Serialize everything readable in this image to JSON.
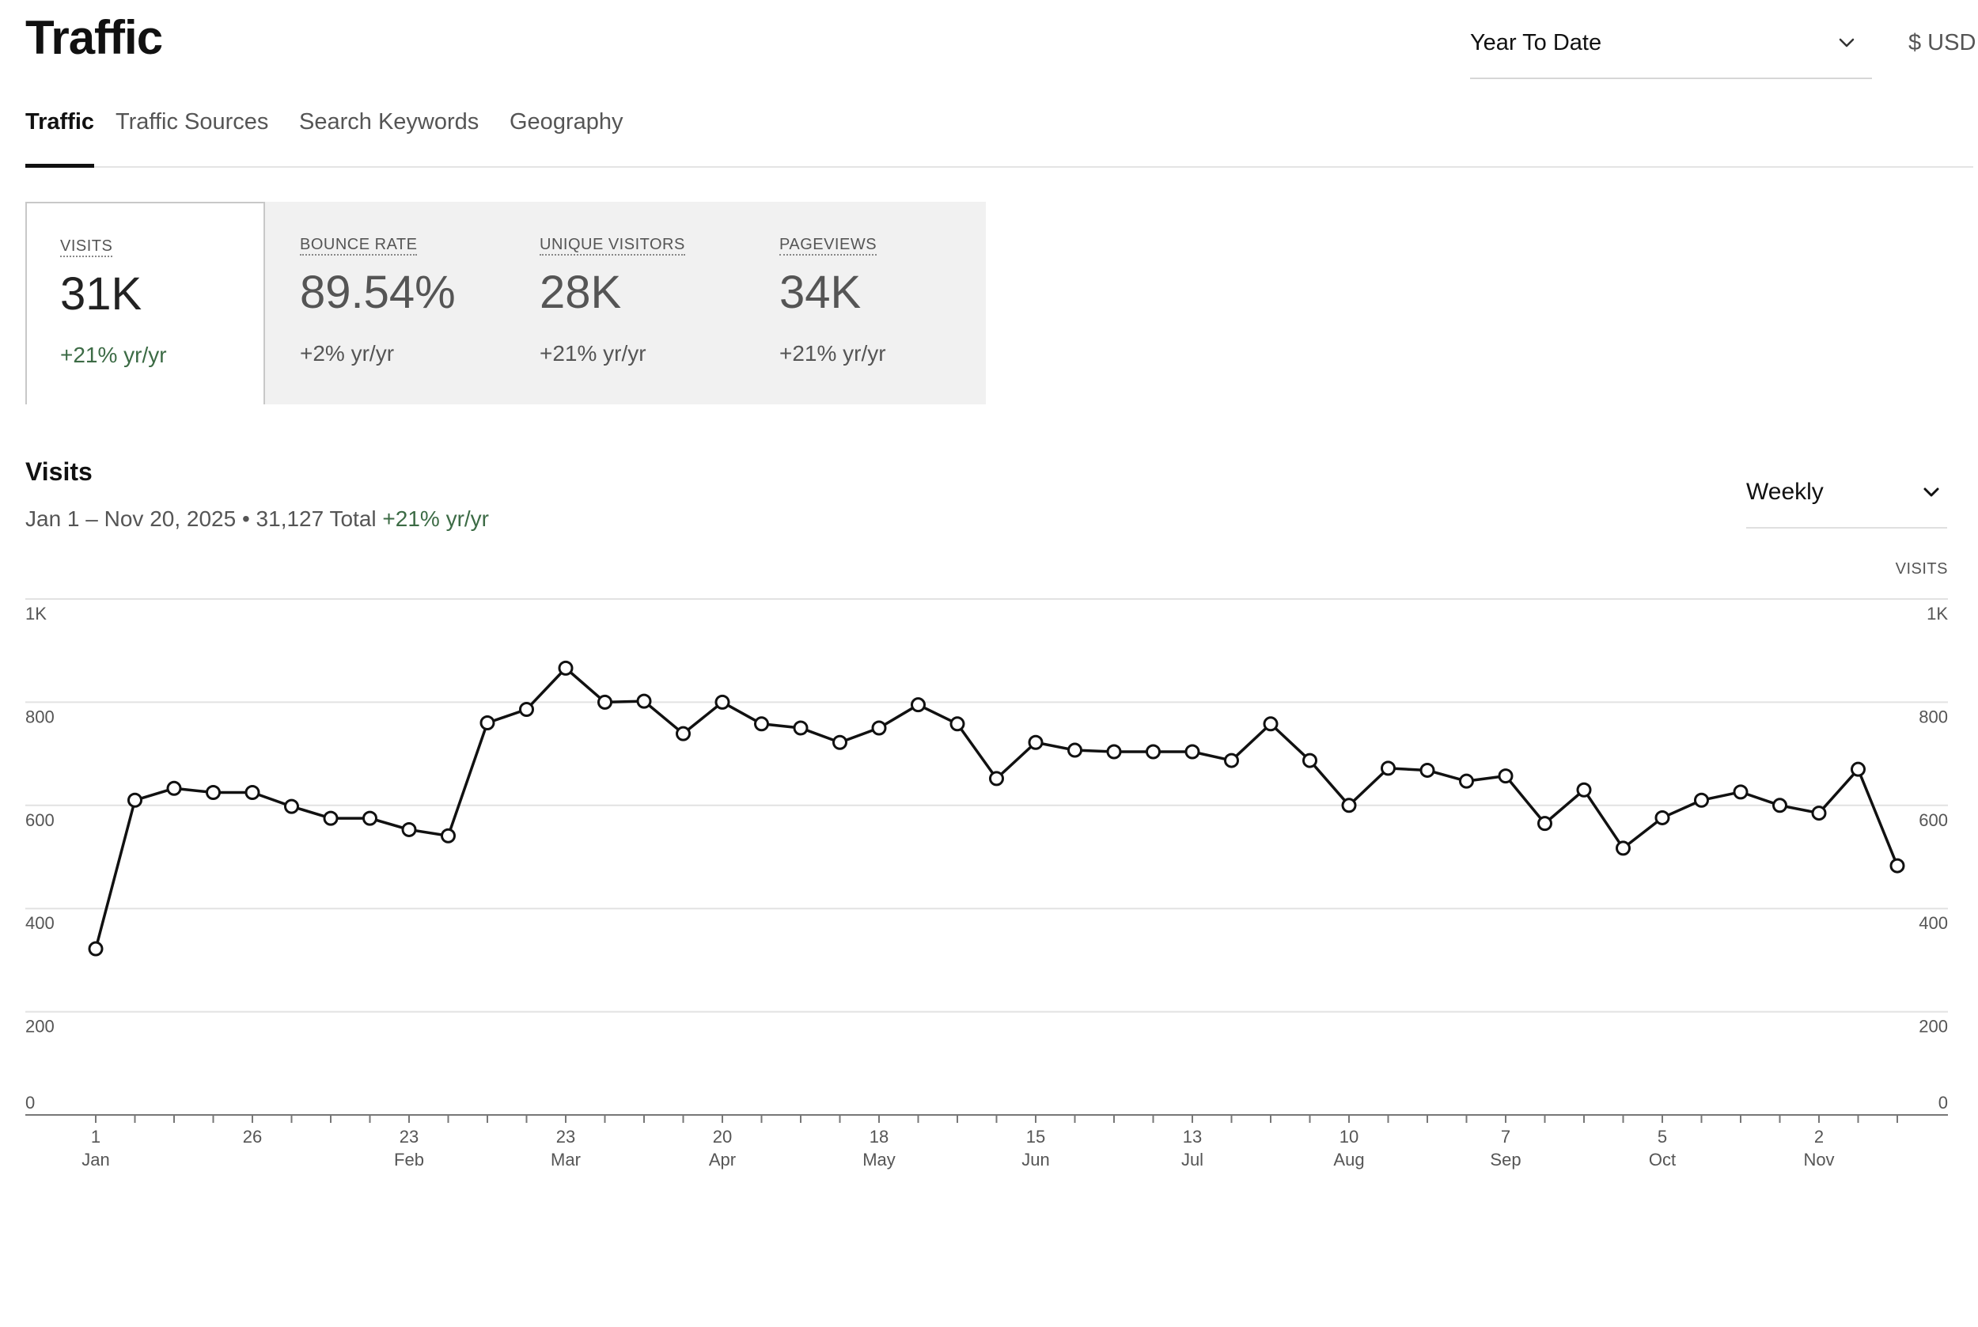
{
  "header": {
    "title": "Traffic",
    "date_range": "Year To Date",
    "currency": "$ USD"
  },
  "tabs": [
    {
      "label": "Traffic",
      "active": true
    },
    {
      "label": "Traffic Sources",
      "active": false
    },
    {
      "label": "Search Keywords",
      "active": false
    },
    {
      "label": "Geography",
      "active": false
    }
  ],
  "metrics": [
    {
      "label": "VISITS",
      "value": "31K",
      "change": "+21% yr/yr",
      "active": true
    },
    {
      "label": "BOUNCE RATE",
      "value": "89.54%",
      "change": "+2% yr/yr",
      "active": false
    },
    {
      "label": "UNIQUE VISITORS",
      "value": "28K",
      "change": "+21% yr/yr",
      "active": false
    },
    {
      "label": "PAGEVIEWS",
      "value": "34K",
      "change": "+21% yr/yr",
      "active": false
    }
  ],
  "visits_section": {
    "title": "Visits",
    "range_text": "Jan 1 – Nov 20, 2025 • 31,127 Total",
    "change": "+21% yr/yr",
    "interval": "Weekly",
    "right_axis_title": "VISITS"
  },
  "colors": {
    "positive": "#3c6b45",
    "line": "#111111",
    "grid": "#e2e2e2",
    "metric_bg": "#f1f1f1"
  },
  "icons": {
    "range_dropdown": "chevron-down-icon",
    "interval_dropdown": "chevron-down-icon"
  },
  "chart_data": {
    "type": "line",
    "title": "Visits",
    "ylabel": "VISITS",
    "ylim": [
      0,
      1000
    ],
    "y_ticks": [
      "0",
      "200",
      "400",
      "600",
      "800",
      "1K"
    ],
    "grid": true,
    "x_tick_labels": [
      {
        "day": "1",
        "month": "Jan",
        "index": 0
      },
      {
        "day": "26",
        "month": "",
        "index": 4
      },
      {
        "day": "23",
        "month": "Feb",
        "index": 8
      },
      {
        "day": "23",
        "month": "Mar",
        "index": 12
      },
      {
        "day": "20",
        "month": "Apr",
        "index": 16
      },
      {
        "day": "18",
        "month": "May",
        "index": 20
      },
      {
        "day": "15",
        "month": "Jun",
        "index": 24
      },
      {
        "day": "13",
        "month": "Jul",
        "index": 28
      },
      {
        "day": "10",
        "month": "Aug",
        "index": 32
      },
      {
        "day": "7",
        "month": "Sep",
        "index": 36
      },
      {
        "day": "5",
        "month": "Oct",
        "index": 40
      },
      {
        "day": "2",
        "month": "Nov",
        "index": 44
      }
    ],
    "series": [
      {
        "values": [
          322,
          610,
          633,
          625,
          625,
          598,
          575,
          575,
          553,
          541,
          760,
          786,
          866,
          800,
          802,
          739,
          800,
          758,
          750,
          722,
          750,
          795,
          758,
          652,
          722,
          707,
          704,
          704,
          704,
          687,
          758,
          687,
          600,
          672,
          668,
          647,
          657,
          565,
          630,
          517,
          576,
          610,
          626,
          600,
          585,
          670,
          483
        ]
      }
    ]
  }
}
